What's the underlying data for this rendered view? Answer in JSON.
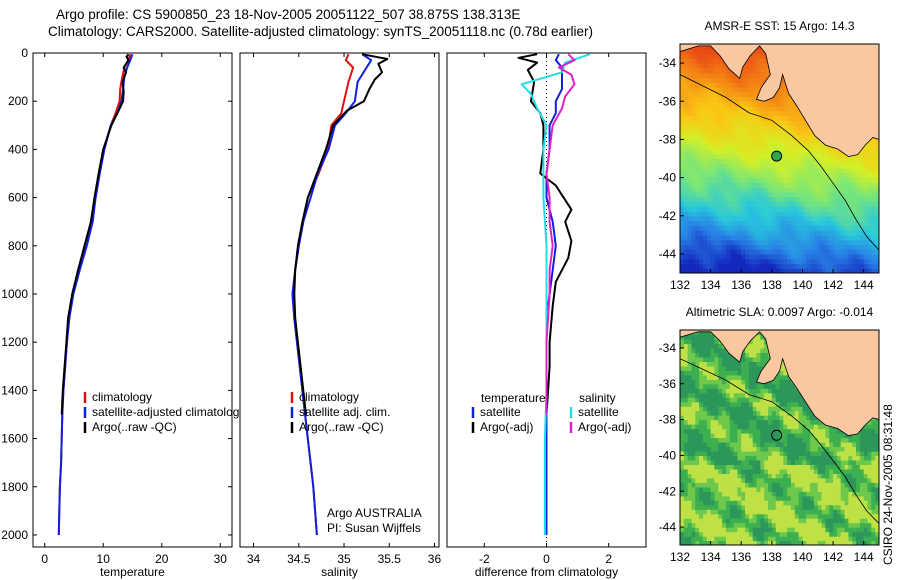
{
  "header": {
    "line1": "Argo profile: CS 5900850_23 18-Nov-2005 20051122_507 38.875S 138.313E",
    "line2": "Climatology: CARS2000. Satellite-adjusted climatology: synTS_20051118.nc (0.78d earlier)"
  },
  "colors": {
    "climatology": "#e01010",
    "satellite": "#1020e0",
    "argo": "#000000",
    "satellite_diff": "#22dde8",
    "argo_adj": "#e020c8",
    "land": "#f9c8a0"
  },
  "credit": "CSIRO 24-Nov-2005 08:31:48",
  "chart_data": [
    {
      "type": "line",
      "id": "temperature",
      "xlabel": "temperature",
      "xlim": [
        -2,
        32
      ],
      "ylim": [
        2050,
        0
      ],
      "xticks": [
        0,
        10,
        20,
        30
      ],
      "yticks": [
        0,
        200,
        400,
        600,
        800,
        1000,
        1200,
        1400,
        1600,
        1800,
        2000
      ],
      "legend": [
        "climatology",
        "satellite-adjusted climatology",
        "Argo(..raw -QC)"
      ],
      "series": [
        {
          "name": "climatology",
          "color": "#e01010",
          "points": [
            [
              14.6,
              5
            ],
            [
              14.3,
              30
            ],
            [
              13.6,
              60
            ],
            [
              13.1,
              120
            ],
            [
              12.9,
              150
            ],
            [
              12.8,
              200
            ],
            [
              12.1,
              250
            ],
            [
              11.3,
              300
            ],
            [
              10.1,
              400
            ],
            [
              9.4,
              500
            ],
            [
              8.7,
              600
            ],
            [
              8.0,
              700
            ],
            [
              6.9,
              800
            ],
            [
              5.8,
              900
            ],
            [
              4.8,
              1000
            ],
            [
              4.2,
              1100
            ],
            [
              3.8,
              1200
            ],
            [
              3.5,
              1300
            ],
            [
              3.2,
              1400
            ],
            [
              3.0,
              1500
            ],
            [
              2.9,
              1600
            ],
            [
              2.8,
              1700
            ],
            [
              2.6,
              1800
            ],
            [
              2.5,
              1900
            ],
            [
              2.4,
              2000
            ]
          ]
        },
        {
          "name": "satellite-adjusted climatology",
          "color": "#1020e0",
          "points": [
            [
              15.0,
              5
            ],
            [
              14.6,
              30
            ],
            [
              14.1,
              60
            ],
            [
              13.6,
              100
            ],
            [
              13.4,
              150
            ],
            [
              13.1,
              200
            ],
            [
              12.4,
              250
            ],
            [
              11.3,
              300
            ],
            [
              10.2,
              400
            ],
            [
              9.4,
              500
            ],
            [
              8.7,
              600
            ],
            [
              8.2,
              700
            ],
            [
              7.2,
              800
            ],
            [
              6.0,
              900
            ],
            [
              4.9,
              1000
            ],
            [
              4.2,
              1100
            ],
            [
              3.8,
              1200
            ],
            [
              3.5,
              1300
            ],
            [
              3.2,
              1400
            ],
            [
              3.0,
              1500
            ],
            [
              2.9,
              1600
            ],
            [
              2.8,
              1700
            ],
            [
              2.6,
              1800
            ],
            [
              2.5,
              1900
            ],
            [
              2.4,
              2000
            ]
          ]
        },
        {
          "name": "Argo(..raw -QC)",
          "color": "#000000",
          "points": [
            [
              14.3,
              5
            ],
            [
              14.0,
              15
            ],
            [
              14.3,
              30
            ],
            [
              13.5,
              60
            ],
            [
              13.9,
              80
            ],
            [
              13.3,
              120
            ],
            [
              13.5,
              160
            ],
            [
              13.4,
              200
            ],
            [
              12.6,
              240
            ],
            [
              11.4,
              300
            ],
            [
              10.0,
              400
            ],
            [
              9.2,
              500
            ],
            [
              8.5,
              600
            ],
            [
              7.9,
              700
            ],
            [
              6.8,
              800
            ],
            [
              5.7,
              900
            ],
            [
              4.7,
              1000
            ],
            [
              4.0,
              1100
            ],
            [
              3.7,
              1200
            ],
            [
              3.4,
              1300
            ],
            [
              3.1,
              1400
            ],
            [
              2.9,
              1500
            ]
          ]
        }
      ]
    },
    {
      "type": "line",
      "id": "salinity",
      "xlabel": "salinity",
      "xlim": [
        33.85,
        36.05
      ],
      "ylim": [
        2050,
        0
      ],
      "xticks": [
        34,
        34.5,
        35,
        35.5,
        36
      ],
      "yticks": [],
      "legend": [
        "climatology",
        "satellite adj. clim.",
        "Argo(..raw -QC)"
      ],
      "annotation": [
        "Argo AUSTRALIA",
        "PI: Susan Wijffels"
      ],
      "series": [
        {
          "name": "climatology",
          "color": "#e01010",
          "points": [
            [
              35.05,
              5
            ],
            [
              35.02,
              30
            ],
            [
              35.1,
              60
            ],
            [
              35.05,
              120
            ],
            [
              35.0,
              200
            ],
            [
              34.97,
              250
            ],
            [
              34.86,
              300
            ],
            [
              34.82,
              400
            ],
            [
              34.72,
              500
            ],
            [
              34.6,
              600
            ],
            [
              34.55,
              700
            ],
            [
              34.5,
              800
            ],
            [
              34.46,
              900
            ],
            [
              34.43,
              1000
            ],
            [
              34.45,
              1100
            ],
            [
              34.48,
              1200
            ],
            [
              34.51,
              1300
            ],
            [
              34.54,
              1400
            ],
            [
              34.57,
              1500
            ],
            [
              34.6,
              1600
            ],
            [
              34.63,
              1700
            ],
            [
              34.66,
              1800
            ],
            [
              34.68,
              1900
            ],
            [
              34.7,
              2000
            ]
          ]
        },
        {
          "name": "satellite adj. clim.",
          "color": "#1020e0",
          "points": [
            [
              35.2,
              5
            ],
            [
              35.3,
              30
            ],
            [
              35.25,
              60
            ],
            [
              35.15,
              120
            ],
            [
              35.12,
              200
            ],
            [
              35.02,
              250
            ],
            [
              34.9,
              300
            ],
            [
              34.83,
              400
            ],
            [
              34.71,
              500
            ],
            [
              34.63,
              600
            ],
            [
              34.55,
              700
            ],
            [
              34.5,
              800
            ],
            [
              34.46,
              900
            ],
            [
              34.43,
              1000
            ],
            [
              34.45,
              1100
            ],
            [
              34.48,
              1200
            ],
            [
              34.51,
              1300
            ],
            [
              34.54,
              1400
            ],
            [
              34.57,
              1500
            ],
            [
              34.6,
              1600
            ],
            [
              34.63,
              1700
            ],
            [
              34.66,
              1800
            ],
            [
              34.68,
              1900
            ],
            [
              34.7,
              2000
            ]
          ]
        },
        {
          "name": "Argo(..raw -QC)",
          "color": "#000000",
          "points": [
            [
              35.2,
              5
            ],
            [
              35.48,
              25
            ],
            [
              35.38,
              45
            ],
            [
              35.42,
              80
            ],
            [
              35.34,
              110
            ],
            [
              35.28,
              150
            ],
            [
              35.22,
              200
            ],
            [
              35.03,
              240
            ],
            [
              34.88,
              300
            ],
            [
              34.8,
              400
            ],
            [
              34.7,
              500
            ],
            [
              34.6,
              600
            ],
            [
              34.54,
              700
            ],
            [
              34.49,
              800
            ],
            [
              34.46,
              900
            ],
            [
              34.45,
              1000
            ],
            [
              34.46,
              1100
            ],
            [
              34.49,
              1200
            ],
            [
              34.52,
              1300
            ],
            [
              34.55,
              1400
            ],
            [
              34.58,
              1500
            ]
          ]
        }
      ]
    },
    {
      "type": "line",
      "id": "difference",
      "xlabel": "difference from climatology",
      "xlim": [
        -3.2,
        3.2
      ],
      "ylim": [
        2050,
        0
      ],
      "xticks": [
        -2,
        0,
        2
      ],
      "yticks": [],
      "legend_groups": [
        {
          "heading": "temperature",
          "items": [
            "satellite",
            "Argo(-adj)"
          ]
        },
        {
          "heading": "salinity",
          "items": [
            "satellite",
            "Argo(-adj)"
          ]
        }
      ],
      "series": [
        {
          "name": "temperature satellite",
          "color": "#1020e0",
          "points": [
            [
              0.4,
              5
            ],
            [
              0.3,
              30
            ],
            [
              0.5,
              60
            ],
            [
              0.5,
              100
            ],
            [
              0.5,
              150
            ],
            [
              0.3,
              200
            ],
            [
              0.3,
              250
            ],
            [
              0.1,
              300
            ],
            [
              0.1,
              400
            ],
            [
              0.0,
              500
            ],
            [
              0.0,
              600
            ],
            [
              0.2,
              700
            ],
            [
              0.3,
              800
            ],
            [
              0.2,
              900
            ],
            [
              0.1,
              1000
            ],
            [
              0.0,
              1100
            ],
            [
              0.0,
              1200
            ],
            [
              0.0,
              1300
            ],
            [
              0.0,
              1400
            ],
            [
              0.0,
              1500
            ],
            [
              0.0,
              1600
            ],
            [
              0.0,
              1700
            ],
            [
              0.0,
              1800
            ],
            [
              0.0,
              1900
            ],
            [
              0.0,
              2000
            ]
          ]
        },
        {
          "name": "temperature Argo(-adj)",
          "color": "#000000",
          "points": [
            [
              -0.3,
              5
            ],
            [
              -0.9,
              20
            ],
            [
              -0.3,
              40
            ],
            [
              -0.6,
              70
            ],
            [
              -0.4,
              120
            ],
            [
              -0.5,
              200
            ],
            [
              -0.2,
              250
            ],
            [
              -0.1,
              300
            ],
            [
              -0.1,
              400
            ],
            [
              -0.2,
              500
            ],
            [
              0.3,
              550
            ],
            [
              0.8,
              650
            ],
            [
              0.6,
              700
            ],
            [
              0.8,
              780
            ],
            [
              0.7,
              850
            ],
            [
              0.3,
              950
            ],
            [
              0.2,
              1050
            ],
            [
              0.1,
              1200
            ],
            [
              0.1,
              1300
            ],
            [
              0.05,
              1400
            ],
            [
              0.0,
              1500
            ]
          ]
        },
        {
          "name": "salinity satellite",
          "color": "#22dde8",
          "points": [
            [
              1.4,
              5
            ],
            [
              0.6,
              40
            ],
            [
              0.5,
              80
            ],
            [
              -0.8,
              130
            ],
            [
              -0.5,
              170
            ],
            [
              -0.3,
              230
            ],
            [
              0.0,
              300
            ],
            [
              -0.1,
              400
            ],
            [
              -0.1,
              500
            ],
            [
              -0.1,
              600
            ],
            [
              0.0,
              800
            ],
            [
              0.0,
              1000
            ],
            [
              0.0,
              1200
            ],
            [
              0.0,
              1400
            ],
            [
              -0.05,
              1600
            ],
            [
              -0.05,
              1800
            ],
            [
              -0.05,
              2000
            ]
          ]
        },
        {
          "name": "salinity Argo(-adj)",
          "color": "#e020c8",
          "points": [
            [
              0.7,
              5
            ],
            [
              0.9,
              30
            ],
            [
              0.4,
              60
            ],
            [
              0.8,
              90
            ],
            [
              0.9,
              130
            ],
            [
              0.6,
              180
            ],
            [
              0.5,
              230
            ],
            [
              0.2,
              300
            ],
            [
              0.1,
              400
            ],
            [
              0.0,
              500
            ],
            [
              0.1,
              600
            ],
            [
              0.1,
              700
            ],
            [
              0.2,
              800
            ],
            [
              0.1,
              900
            ],
            [
              0.1,
              1000
            ],
            [
              0.0,
              1200
            ],
            [
              0.0,
              1400
            ],
            [
              0.0,
              1500
            ]
          ]
        }
      ]
    },
    {
      "type": "heatmap",
      "id": "sst-map",
      "title": "AMSR-E SST: 15 Argo: 14.3",
      "xlim": [
        132,
        145
      ],
      "ylim": [
        -45,
        -33
      ],
      "xticks": [
        132,
        134,
        136,
        138,
        140,
        142,
        144
      ],
      "yticks": [
        -34,
        -36,
        -38,
        -40,
        -42,
        -44
      ],
      "marker": {
        "lon": 138.313,
        "lat": -38.875,
        "fill": "#2fa84a"
      }
    },
    {
      "type": "heatmap",
      "id": "sla-map",
      "title": "Altimetric SLA: 0.0097 Argo: -0.014",
      "xlim": [
        132,
        145
      ],
      "ylim": [
        -45,
        -33
      ],
      "xticks": [
        132,
        134,
        136,
        138,
        140,
        142,
        144
      ],
      "yticks": [
        -34,
        -36,
        -38,
        -40,
        -42,
        -44
      ],
      "marker": {
        "lon": 138.313,
        "lat": -38.875,
        "fill": "none"
      }
    }
  ]
}
